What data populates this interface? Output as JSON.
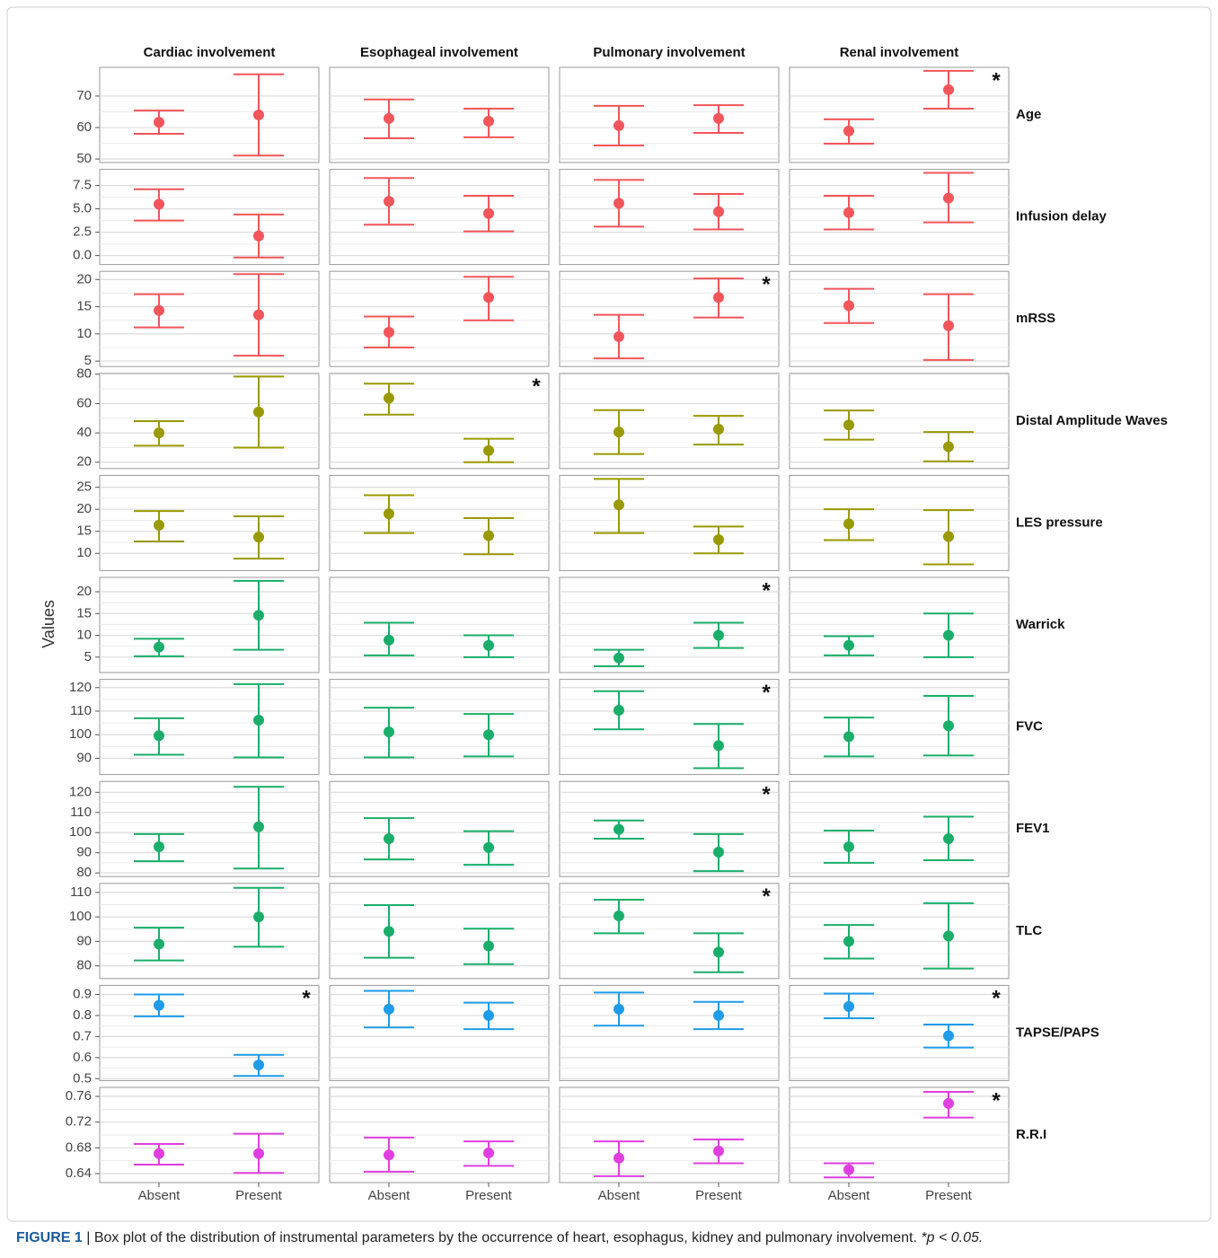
{
  "chart_data": {
    "type": "errorbar",
    "y_title": "Values",
    "column_titles": [
      "Cardiac involvement",
      "Esophageal involvement",
      "Pulmonary involvement",
      "Renal involvement"
    ],
    "categories": [
      "Absent",
      "Present"
    ],
    "rows": [
      {
        "name": "Age",
        "color": "#f2555a",
        "ylim": [
          48.9,
          79.1
        ],
        "yticks": [
          50,
          60,
          70
        ],
        "panels": [
          {
            "values": [
              61.7,
              64
            ],
            "lower": [
              58,
              51.1
            ],
            "upper": [
              65.4,
              76.9
            ]
          },
          {
            "values": [
              62.9,
              62
            ],
            "lower": [
              56.6,
              56.9
            ],
            "upper": [
              68.9,
              66
            ]
          },
          {
            "values": [
              60.6,
              62.9
            ],
            "lower": [
              54.3,
              58.3
            ],
            "upper": [
              66.9,
              67.1
            ]
          },
          {
            "values": [
              58.9,
              72
            ],
            "lower": [
              54.9,
              66
            ],
            "upper": [
              62.6,
              78
            ],
            "annotation": "*"
          }
        ]
      },
      {
        "name": "Infusion delay",
        "color": "#f2555a",
        "ylim": [
          -0.96,
          9.23
        ],
        "yticks": [
          {
            "value": 0,
            "label": "0.0"
          },
          2.5,
          {
            "value": 5,
            "label": "5.0"
          },
          7.5
        ],
        "panels": [
          {
            "values": [
              5.5,
              2.1
            ],
            "lower": [
              3.75,
              -0.2
            ],
            "upper": [
              7.1,
              4.4
            ]
          },
          {
            "values": [
              5.8,
              4.5
            ],
            "lower": [
              3.3,
              2.6
            ],
            "upper": [
              8.3,
              6.4
            ]
          },
          {
            "values": [
              5.6,
              4.7
            ],
            "lower": [
              3.1,
              2.8
            ],
            "upper": [
              8.1,
              6.6
            ]
          },
          {
            "values": [
              4.6,
              6.15
            ],
            "lower": [
              2.8,
              3.55
            ],
            "upper": [
              6.4,
              8.85
            ]
          }
        ]
      },
      {
        "name": "mRSS",
        "color": "#f2555a",
        "ylim": [
          4,
          21.5
        ],
        "yticks": [
          5,
          10,
          15,
          20
        ],
        "panels": [
          {
            "values": [
              14.3,
              13.5
            ],
            "lower": [
              11.2,
              6
            ],
            "upper": [
              17.3,
              21
            ]
          },
          {
            "values": [
              10.3,
              16.7
            ],
            "lower": [
              7.5,
              12.5
            ],
            "upper": [
              13.2,
              20.5
            ]
          },
          {
            "values": [
              9.5,
              16.7
            ],
            "lower": [
              5.5,
              13
            ],
            "upper": [
              13.5,
              20.2
            ],
            "annotation": "*"
          },
          {
            "values": [
              15.2,
              11.5
            ],
            "lower": [
              12,
              5.2
            ],
            "upper": [
              18.3,
              17.3
            ]
          }
        ]
      },
      {
        "name": "Distal Amplitude Waves",
        "color": "#999900",
        "ylim": [
          15.7,
          80.6
        ],
        "yticks": [
          20,
          40,
          60,
          80
        ],
        "panels": [
          {
            "values": [
              40,
              54.2
            ],
            "lower": [
              31.3,
              30
            ],
            "upper": [
              48,
              78.4
            ]
          },
          {
            "values": [
              63.7,
              28
            ],
            "lower": [
              52.5,
              20
            ],
            "upper": [
              73.6,
              36
            ],
            "annotation": "*"
          },
          {
            "values": [
              40.6,
              42.5
            ],
            "lower": [
              25.6,
              32
            ],
            "upper": [
              55.5,
              51.6
            ]
          },
          {
            "values": [
              45.4,
              30.6
            ],
            "lower": [
              35.4,
              20.6
            ],
            "upper": [
              55.3,
              40.6
            ]
          }
        ]
      },
      {
        "name": "LES pressure",
        "color": "#999900",
        "ylim": [
          6.1,
          27.7
        ],
        "yticks": [
          10,
          15,
          20,
          25
        ],
        "panels": [
          {
            "values": [
              16.4,
              13.7
            ],
            "lower": [
              12.7,
              8.8
            ],
            "upper": [
              19.6,
              18.4
            ]
          },
          {
            "values": [
              19,
              14
            ],
            "lower": [
              14.6,
              9.8
            ],
            "upper": [
              23.2,
              18
            ]
          },
          {
            "values": [
              21,
              13.1
            ],
            "lower": [
              14.6,
              10
            ],
            "upper": [
              26.9,
              16.1
            ]
          },
          {
            "values": [
              16.7,
              13.8
            ],
            "lower": [
              13,
              7.5
            ],
            "upper": [
              20,
              19.8
            ]
          }
        ]
      },
      {
        "name": "Warrick",
        "color": "#1aae6a",
        "ylim": [
          1.46,
          23.3
        ],
        "yticks": [
          5,
          10,
          15,
          20
        ],
        "panels": [
          {
            "values": [
              7.3,
              14.6
            ],
            "lower": [
              5.2,
              6.7
            ],
            "upper": [
              9.2,
              22.5
            ]
          },
          {
            "values": [
              8.9,
              7.7
            ],
            "lower": [
              5.4,
              5
            ],
            "upper": [
              12.9,
              10
            ]
          },
          {
            "values": [
              4.8,
              10
            ],
            "lower": [
              2.9,
              7.1
            ],
            "upper": [
              6.7,
              12.9
            ],
            "annotation": "*"
          },
          {
            "values": [
              7.7,
              10
            ],
            "lower": [
              5.4,
              5
            ],
            "upper": [
              9.8,
              15
            ]
          }
        ]
      },
      {
        "name": "FVC",
        "color": "#1aae6a",
        "ylim": [
          83.1,
          123.5
        ],
        "yticks": [
          90,
          100,
          110,
          120
        ],
        "panels": [
          {
            "values": [
              99.6,
              106.2
            ],
            "lower": [
              91.5,
              90.4
            ],
            "upper": [
              107,
              121.5
            ]
          },
          {
            "values": [
              101.2,
              100
            ],
            "lower": [
              90.4,
              90.8
            ],
            "upper": [
              111.5,
              108.8
            ]
          },
          {
            "values": [
              110.4,
              95.4
            ],
            "lower": [
              102.3,
              85.8
            ],
            "upper": [
              118.5,
              104.6
            ],
            "annotation": "*"
          },
          {
            "values": [
              99.2,
              103.8
            ],
            "lower": [
              90.8,
              91.2
            ],
            "upper": [
              107.3,
              116.5
            ]
          }
        ]
      },
      {
        "name": "FEV1",
        "color": "#1aae6a",
        "ylim": [
          78.2,
          125.4
        ],
        "yticks": [
          80,
          90,
          100,
          110,
          120
        ],
        "panels": [
          {
            "values": [
              93,
              102.9
            ],
            "lower": [
              85.8,
              82.2
            ],
            "upper": [
              99.3,
              122.7
            ]
          },
          {
            "values": [
              97,
              92.6
            ],
            "lower": [
              86.7,
              84
            ],
            "upper": [
              107.2,
              100.7
            ]
          },
          {
            "values": [
              101.6,
              90.3
            ],
            "lower": [
              97,
              80.9
            ],
            "upper": [
              106,
              99.3
            ],
            "annotation": "*"
          },
          {
            "values": [
              93,
              97
            ],
            "lower": [
              85,
              86.3
            ],
            "upper": [
              101,
              107.9
            ]
          }
        ]
      },
      {
        "name": "TLC",
        "color": "#1aae6a",
        "ylim": [
          74.8,
          113.7
        ],
        "yticks": [
          80,
          90,
          100,
          110
        ],
        "panels": [
          {
            "values": [
              88.9,
              100
            ],
            "lower": [
              82.2,
              87.8
            ],
            "upper": [
              95.6,
              111.9
            ]
          },
          {
            "values": [
              94.1,
              88.1
            ],
            "lower": [
              83.3,
              80.7
            ],
            "upper": [
              104.8,
              95.2
            ]
          },
          {
            "values": [
              100.4,
              85.6
            ],
            "lower": [
              93.3,
              77.4
            ],
            "upper": [
              107,
              93.3
            ],
            "annotation": "*"
          },
          {
            "values": [
              90,
              92.2
            ],
            "lower": [
              83,
              78.9
            ],
            "upper": [
              96.7,
              105.6
            ]
          }
        ]
      },
      {
        "name": "TAPSE/PAPS",
        "color": "#1f9be8",
        "ylim": [
          0.491,
          0.943
        ],
        "yticks": [
          0.5,
          0.6,
          0.7,
          0.8,
          0.9
        ],
        "panels": [
          {
            "values": [
              0.848,
              0.565
            ],
            "lower": [
              0.796,
              0.513
            ],
            "upper": [
              0.9,
              0.613
            ],
            "annotation": "*"
          },
          {
            "values": [
              0.83,
              0.8
            ],
            "lower": [
              0.743,
              0.735
            ],
            "upper": [
              0.917,
              0.861
            ]
          },
          {
            "values": [
              0.83,
              0.8
            ],
            "lower": [
              0.752,
              0.735
            ],
            "upper": [
              0.909,
              0.865
            ]
          },
          {
            "values": [
              0.843,
              0.704
            ],
            "lower": [
              0.787,
              0.648
            ],
            "upper": [
              0.904,
              0.757
            ],
            "annotation": "*"
          }
        ]
      },
      {
        "name": "R.R.I",
        "color": "#e03fe0",
        "ylim": [
          0.626,
          0.774
        ],
        "yticks": [
          0.64,
          0.68,
          0.72,
          0.76
        ],
        "panels": [
          {
            "values": [
              0.671,
              0.671
            ],
            "lower": [
              0.654,
              0.641
            ],
            "upper": [
              0.686,
              0.702
            ]
          },
          {
            "values": [
              0.669,
              0.672
            ],
            "lower": [
              0.643,
              0.652
            ],
            "upper": [
              0.696,
              0.69
            ]
          },
          {
            "values": [
              0.664,
              0.675
            ],
            "lower": [
              0.636,
              0.656
            ],
            "upper": [
              0.69,
              0.693
            ]
          },
          {
            "values": [
              0.646,
              0.749
            ],
            "lower": [
              0.634,
              0.727
            ],
            "upper": [
              0.656,
              0.767
            ],
            "annotation": "*"
          }
        ]
      }
    ]
  },
  "caption": {
    "label": "FIGURE 1",
    "text": "| Box plot of the distribution of instrumental parameters by the occurrence of heart, esophagus, kidney and pulmonary involvement.",
    "note": "*p < 0.05."
  }
}
